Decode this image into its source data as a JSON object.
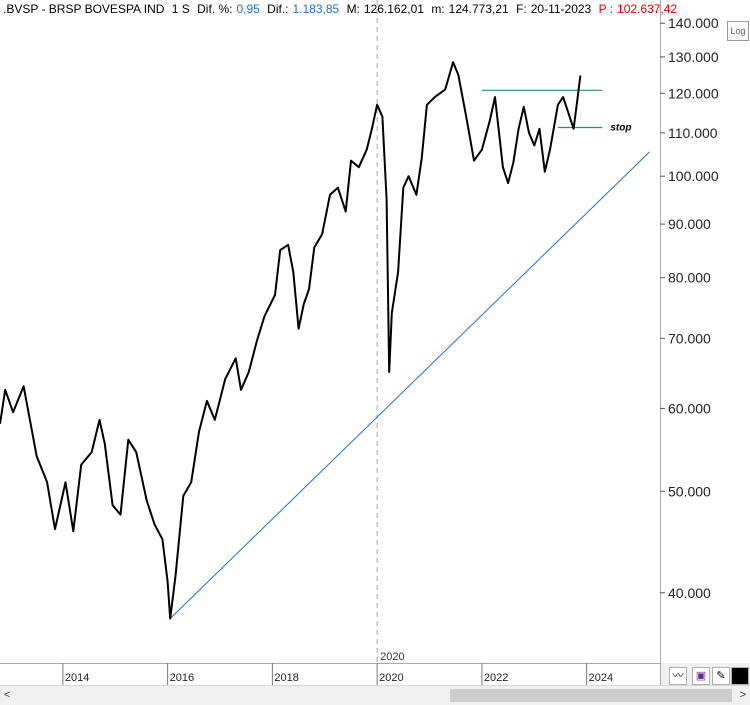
{
  "header": {
    "symbol": ".BVSP - BRSP BOVESPA IND",
    "period": "1 S",
    "dif_pct_label": "Dif. %:",
    "dif_pct_value": "0,95",
    "dif_label": "Dif.:",
    "dif_value": "1.183,85",
    "max_label": "M:",
    "max_value": "126.162,01",
    "min_label": "m:",
    "min_value": "124.773,21",
    "date_label": "F:",
    "date_value": "20-11-2023",
    "price_label": "P :",
    "price_value": "102.637,42"
  },
  "log_button": "Log",
  "cursor_label": "2020",
  "annotation_stop": "stop",
  "colors": {
    "price": "#000000",
    "trend": "#1e6fd0",
    "levels": "#2a8a8a",
    "dif": "#1e6fd0",
    "price_text": "#e00000"
  },
  "chart_data": {
    "type": "line",
    "yscale": "log",
    "ylim": [
      34500,
      141000
    ],
    "xlim": [
      2012.8,
      2025.4
    ],
    "y_ticks": [
      "40.000",
      "50.000",
      "60.000",
      "70.000",
      "80.000",
      "90.000",
      "100.000",
      "110.000",
      "120.000",
      "130.000",
      "140.000"
    ],
    "x_ticks": [
      "2014",
      "2016",
      "2018",
      "2020",
      "2022",
      "2024"
    ],
    "series": [
      {
        "points": [
          [
            2012.8,
            58000
          ],
          [
            2012.9,
            62500
          ],
          [
            2013.05,
            59500
          ],
          [
            2013.25,
            63000
          ],
          [
            2013.5,
            54000
          ],
          [
            2013.7,
            51000
          ],
          [
            2013.85,
            46000
          ],
          [
            2014.05,
            51000
          ],
          [
            2014.2,
            45800
          ],
          [
            2014.35,
            53000
          ],
          [
            2014.55,
            54500
          ],
          [
            2014.7,
            58500
          ],
          [
            2014.8,
            55500
          ],
          [
            2014.95,
            48500
          ],
          [
            2015.1,
            47500
          ],
          [
            2015.25,
            56000
          ],
          [
            2015.4,
            54500
          ],
          [
            2015.6,
            49000
          ],
          [
            2015.75,
            46500
          ],
          [
            2015.9,
            45000
          ],
          [
            2016.0,
            41000
          ],
          [
            2016.05,
            37800
          ],
          [
            2016.15,
            41500
          ],
          [
            2016.3,
            49500
          ],
          [
            2016.45,
            51000
          ],
          [
            2016.6,
            57000
          ],
          [
            2016.75,
            61000
          ],
          [
            2016.9,
            58500
          ],
          [
            2017.1,
            64000
          ],
          [
            2017.3,
            67000
          ],
          [
            2017.4,
            62500
          ],
          [
            2017.55,
            65000
          ],
          [
            2017.7,
            69500
          ],
          [
            2017.85,
            73500
          ],
          [
            2018.05,
            77000
          ],
          [
            2018.15,
            85000
          ],
          [
            2018.3,
            86000
          ],
          [
            2018.4,
            81000
          ],
          [
            2018.5,
            71500
          ],
          [
            2018.6,
            75500
          ],
          [
            2018.7,
            78000
          ],
          [
            2018.8,
            85500
          ],
          [
            2018.95,
            88000
          ],
          [
            2019.1,
            96000
          ],
          [
            2019.25,
            97500
          ],
          [
            2019.4,
            92500
          ],
          [
            2019.5,
            103500
          ],
          [
            2019.65,
            102000
          ],
          [
            2019.8,
            106000
          ],
          [
            2019.9,
            111000
          ],
          [
            2020.0,
            117000
          ],
          [
            2020.1,
            114000
          ],
          [
            2020.18,
            95000
          ],
          [
            2020.23,
            65000
          ],
          [
            2020.28,
            74000
          ],
          [
            2020.4,
            81000
          ],
          [
            2020.5,
            97500
          ],
          [
            2020.6,
            100000
          ],
          [
            2020.75,
            96000
          ],
          [
            2020.85,
            104000
          ],
          [
            2020.95,
            117000
          ],
          [
            2021.1,
            119000
          ],
          [
            2021.3,
            121000
          ],
          [
            2021.45,
            128500
          ],
          [
            2021.55,
            125000
          ],
          [
            2021.7,
            114000
          ],
          [
            2021.85,
            103500
          ],
          [
            2022.0,
            106000
          ],
          [
            2022.15,
            113000
          ],
          [
            2022.25,
            119000
          ],
          [
            2022.4,
            102000
          ],
          [
            2022.5,
            98500
          ],
          [
            2022.6,
            103000
          ],
          [
            2022.7,
            111000
          ],
          [
            2022.8,
            116500
          ],
          [
            2022.9,
            110000
          ],
          [
            2023.0,
            107000
          ],
          [
            2023.1,
            111000
          ],
          [
            2023.2,
            101000
          ],
          [
            2023.3,
            106000
          ],
          [
            2023.45,
            117000
          ],
          [
            2023.55,
            119000
          ],
          [
            2023.65,
            115000
          ],
          [
            2023.75,
            111000
          ],
          [
            2023.82,
            118000
          ],
          [
            2023.88,
            124800
          ]
        ]
      }
    ],
    "trendline": [
      [
        2016.05,
        37800
      ],
      [
        2025.2,
        105500
      ]
    ],
    "resistance": [
      [
        2022.0,
        120800
      ],
      [
        2024.3,
        120800
      ]
    ],
    "stop_level": [
      [
        2023.45,
        111300
      ],
      [
        2024.3,
        111300
      ]
    ],
    "cursor_x": 2020.0,
    "grid": false
  }
}
